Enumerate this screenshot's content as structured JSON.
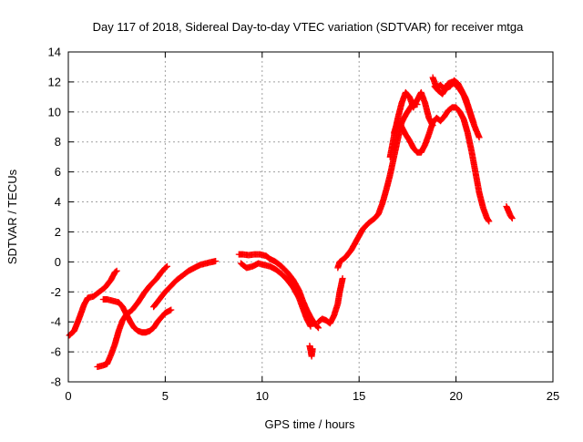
{
  "chart_data": {
    "type": "scatter",
    "title": "Day 117 of 2018, Sidereal Day-to-day VTEC variation (SDTVAR) for receiver mtga",
    "xlabel": "GPS time / hours",
    "ylabel": "SDTVAR / TECUs",
    "xlim": [
      0,
      25
    ],
    "ylim": [
      -8,
      14
    ],
    "xticks": [
      0,
      5,
      10,
      15,
      20,
      25
    ],
    "yticks": [
      -8,
      -6,
      -4,
      -2,
      0,
      2,
      4,
      6,
      8,
      10,
      12,
      14
    ],
    "grid": true,
    "marker": "plus",
    "color": "#ff0000",
    "segments": [
      [
        [
          0.05,
          -4.9
        ],
        [
          0.3,
          -4.6
        ],
        [
          0.55,
          -3.8
        ],
        [
          0.8,
          -2.9
        ],
        [
          1.0,
          -2.4
        ],
        [
          1.3,
          -2.3
        ],
        [
          1.6,
          -2.0
        ],
        [
          1.9,
          -1.7
        ],
        [
          2.2,
          -1.2
        ],
        [
          2.4,
          -0.7
        ],
        [
          2.5,
          -0.6
        ]
      ],
      [
        [
          1.5,
          -7.0
        ],
        [
          1.8,
          -6.9
        ],
        [
          2.0,
          -6.8
        ],
        [
          2.2,
          -6.2
        ],
        [
          2.4,
          -5.5
        ],
        [
          2.6,
          -4.6
        ],
        [
          2.8,
          -3.9
        ],
        [
          3.0,
          -3.5
        ],
        [
          3.3,
          -3.2
        ],
        [
          3.6,
          -2.7
        ],
        [
          3.9,
          -2.1
        ],
        [
          4.2,
          -1.6
        ],
        [
          4.5,
          -1.2
        ],
        [
          4.8,
          -0.7
        ],
        [
          5.0,
          -0.4
        ],
        [
          5.1,
          -0.3
        ]
      ],
      [
        [
          1.8,
          -2.5
        ],
        [
          2.0,
          -2.5
        ],
        [
          2.3,
          -2.6
        ],
        [
          2.6,
          -2.7
        ],
        [
          2.8,
          -3.0
        ],
        [
          3.0,
          -3.5
        ],
        [
          3.2,
          -4.0
        ],
        [
          3.4,
          -4.4
        ],
        [
          3.6,
          -4.6
        ],
        [
          3.8,
          -4.7
        ],
        [
          4.0,
          -4.7
        ],
        [
          4.2,
          -4.6
        ],
        [
          4.4,
          -4.4
        ],
        [
          4.6,
          -4.0
        ],
        [
          4.8,
          -3.7
        ],
        [
          5.0,
          -3.4
        ],
        [
          5.3,
          -3.2
        ]
      ],
      [
        [
          4.4,
          -3.0
        ],
        [
          4.7,
          -2.5
        ],
        [
          5.0,
          -2.0
        ],
        [
          5.3,
          -1.6
        ],
        [
          5.6,
          -1.2
        ],
        [
          5.9,
          -0.9
        ],
        [
          6.2,
          -0.6
        ],
        [
          6.5,
          -0.4
        ],
        [
          6.8,
          -0.2
        ],
        [
          7.1,
          -0.1
        ],
        [
          7.4,
          0.0
        ],
        [
          7.6,
          0.05
        ]
      ],
      [
        [
          8.8,
          0.5
        ],
        [
          9.0,
          0.5
        ],
        [
          9.3,
          0.45
        ],
        [
          9.6,
          0.5
        ],
        [
          9.9,
          0.5
        ],
        [
          10.2,
          0.4
        ],
        [
          10.4,
          0.2
        ],
        [
          10.7,
          0.0
        ],
        [
          11.0,
          -0.3
        ],
        [
          11.3,
          -0.7
        ],
        [
          11.6,
          -1.2
        ],
        [
          11.9,
          -1.9
        ],
        [
          12.1,
          -2.6
        ],
        [
          12.3,
          -3.2
        ],
        [
          12.5,
          -3.7
        ],
        [
          12.7,
          -4.1
        ],
        [
          12.9,
          -4.4
        ]
      ],
      [
        [
          8.9,
          -0.1
        ],
        [
          9.2,
          -0.4
        ],
        [
          9.5,
          -0.3
        ],
        [
          9.8,
          -0.1
        ],
        [
          10.1,
          -0.2
        ],
        [
          10.4,
          -0.3
        ],
        [
          10.7,
          -0.5
        ],
        [
          11.0,
          -0.8
        ],
        [
          11.3,
          -1.2
        ],
        [
          11.6,
          -1.7
        ],
        [
          11.9,
          -2.4
        ],
        [
          12.1,
          -3.1
        ],
        [
          12.3,
          -3.8
        ],
        [
          12.5,
          -4.3
        ]
      ],
      [
        [
          12.45,
          -5.6
        ],
        [
          12.5,
          -5.9
        ],
        [
          12.55,
          -6.3
        ],
        [
          12.6,
          -5.8
        ]
      ],
      [
        [
          12.9,
          -4.0
        ],
        [
          13.1,
          -3.8
        ],
        [
          13.3,
          -3.9
        ],
        [
          13.5,
          -4.1
        ],
        [
          13.7,
          -3.6
        ],
        [
          13.9,
          -2.8
        ],
        [
          14.0,
          -2.0
        ],
        [
          14.1,
          -1.4
        ],
        [
          14.15,
          -1.1
        ]
      ],
      [
        [
          13.9,
          -0.4
        ],
        [
          14.0,
          0.0
        ],
        [
          14.3,
          0.3
        ],
        [
          14.6,
          0.8
        ],
        [
          14.9,
          1.5
        ],
        [
          15.2,
          2.2
        ],
        [
          15.5,
          2.6
        ],
        [
          15.8,
          2.9
        ],
        [
          16.0,
          3.2
        ],
        [
          16.2,
          3.9
        ],
        [
          16.4,
          4.8
        ],
        [
          16.6,
          5.8
        ],
        [
          16.8,
          7.0
        ],
        [
          17.0,
          8.2
        ],
        [
          17.2,
          9.3
        ],
        [
          17.4,
          9.8
        ],
        [
          17.6,
          10.2
        ],
        [
          17.8,
          10.6
        ],
        [
          18.0,
          10.5
        ]
      ],
      [
        [
          16.6,
          7.0
        ],
        [
          16.8,
          8.4
        ],
        [
          17.0,
          9.6
        ],
        [
          17.2,
          10.6
        ],
        [
          17.4,
          11.3
        ],
        [
          17.6,
          11.0
        ],
        [
          17.8,
          10.3
        ],
        [
          18.0,
          10.8
        ],
        [
          18.2,
          11.3
        ],
        [
          18.4,
          10.6
        ],
        [
          18.6,
          9.6
        ],
        [
          18.8,
          9.1
        ]
      ],
      [
        [
          16.8,
          8.6
        ],
        [
          17.0,
          9.4
        ],
        [
          17.2,
          9.0
        ],
        [
          17.4,
          8.5
        ],
        [
          17.6,
          8.1
        ],
        [
          17.8,
          7.6
        ],
        [
          18.0,
          7.3
        ],
        [
          18.2,
          7.3
        ],
        [
          18.4,
          7.8
        ],
        [
          18.6,
          8.5
        ],
        [
          18.8,
          9.3
        ],
        [
          19.0,
          9.6
        ],
        [
          19.2,
          9.4
        ],
        [
          19.4,
          9.7
        ],
        [
          19.6,
          10.1
        ],
        [
          19.8,
          10.3
        ],
        [
          20.0,
          10.3
        ],
        [
          20.2,
          10.0
        ],
        [
          20.4,
          9.5
        ],
        [
          20.6,
          8.6
        ],
        [
          20.8,
          7.4
        ],
        [
          21.0,
          6.0
        ],
        [
          21.2,
          4.6
        ],
        [
          21.4,
          3.6
        ],
        [
          21.6,
          2.9
        ],
        [
          21.7,
          2.7
        ]
      ],
      [
        [
          18.8,
          12.3
        ],
        [
          19.0,
          11.6
        ],
        [
          19.2,
          11.8
        ],
        [
          19.4,
          11.5
        ],
        [
          19.6,
          11.9
        ],
        [
          19.8,
          12.0
        ],
        [
          20.0,
          11.8
        ],
        [
          20.2,
          11.5
        ],
        [
          20.4,
          11.1
        ],
        [
          20.6,
          10.4
        ],
        [
          20.8,
          9.6
        ],
        [
          21.0,
          8.9
        ],
        [
          21.2,
          8.3
        ]
      ],
      [
        [
          18.9,
          11.7
        ],
        [
          19.1,
          11.4
        ],
        [
          19.3,
          11.2
        ],
        [
          19.5,
          11.6
        ],
        [
          19.7,
          11.7
        ],
        [
          19.9,
          12.1
        ],
        [
          20.1,
          11.9
        ],
        [
          20.3,
          11.4
        ],
        [
          20.5,
          10.9
        ],
        [
          20.7,
          10.1
        ],
        [
          20.9,
          9.3
        ]
      ],
      [
        [
          22.6,
          3.7
        ],
        [
          22.7,
          3.4
        ],
        [
          22.8,
          3.1
        ],
        [
          22.9,
          2.9
        ]
      ]
    ]
  }
}
